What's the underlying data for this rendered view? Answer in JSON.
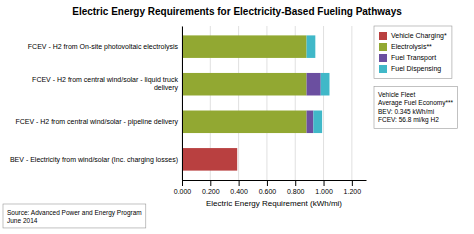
{
  "chart_data": {
    "type": "bar",
    "orientation": "horizontal",
    "stacked": true,
    "title": "Electric Energy Requirements for Electricity-Based Fueling Pathways",
    "xlabel": "Electric Energy Requirement (kWh/mi)",
    "categories": [
      "BEV - Electricity from wind/solar (Inc. charging losses)",
      "FCEV - H2 from central wind/solar - pipeline delivery",
      "FCEV - H2 from central wind/solar - liquid truck\ndelivery",
      "FCEV - H2 from On-site photovoltaic electrolysis"
    ],
    "series": [
      {
        "name": "Vehicle Charging*",
        "color": "#b94040",
        "values": [
          0.39,
          0.0,
          0.0,
          0.0
        ]
      },
      {
        "name": "Electrolysis**",
        "color": "#92a832",
        "values": [
          0.0,
          0.88,
          0.88,
          0.88
        ]
      },
      {
        "name": "Fuel Transport",
        "color": "#6b4fa0",
        "values": [
          0.0,
          0.048,
          0.1,
          0.0
        ]
      },
      {
        "name": "Fuel Dispensing",
        "color": "#40b8c8",
        "values": [
          0.0,
          0.062,
          0.062,
          0.062
        ]
      }
    ],
    "xlim": [
      0,
      1.3
    ],
    "xticks": [
      {
        "value": 0.0,
        "label": "0.000"
      },
      {
        "value": 0.2,
        "label": "0.200"
      },
      {
        "value": 0.4,
        "label": "0.400"
      },
      {
        "value": 0.6,
        "label": "0.600"
      },
      {
        "value": 0.8,
        "label": "0.800"
      },
      {
        "value": 1.0,
        "label": "1.000"
      },
      {
        "value": 1.2,
        "label": "1.200"
      }
    ],
    "grid": true,
    "legend": "right",
    "annotations": [
      "Vehicle Fleet\nAverage Fuel Economy***\nBEV: 0.345 kWh/mi\nFCEV: 56.8 mi/kg H2",
      "Source: Advanced Power and Energy Program\nJune 2014"
    ]
  }
}
